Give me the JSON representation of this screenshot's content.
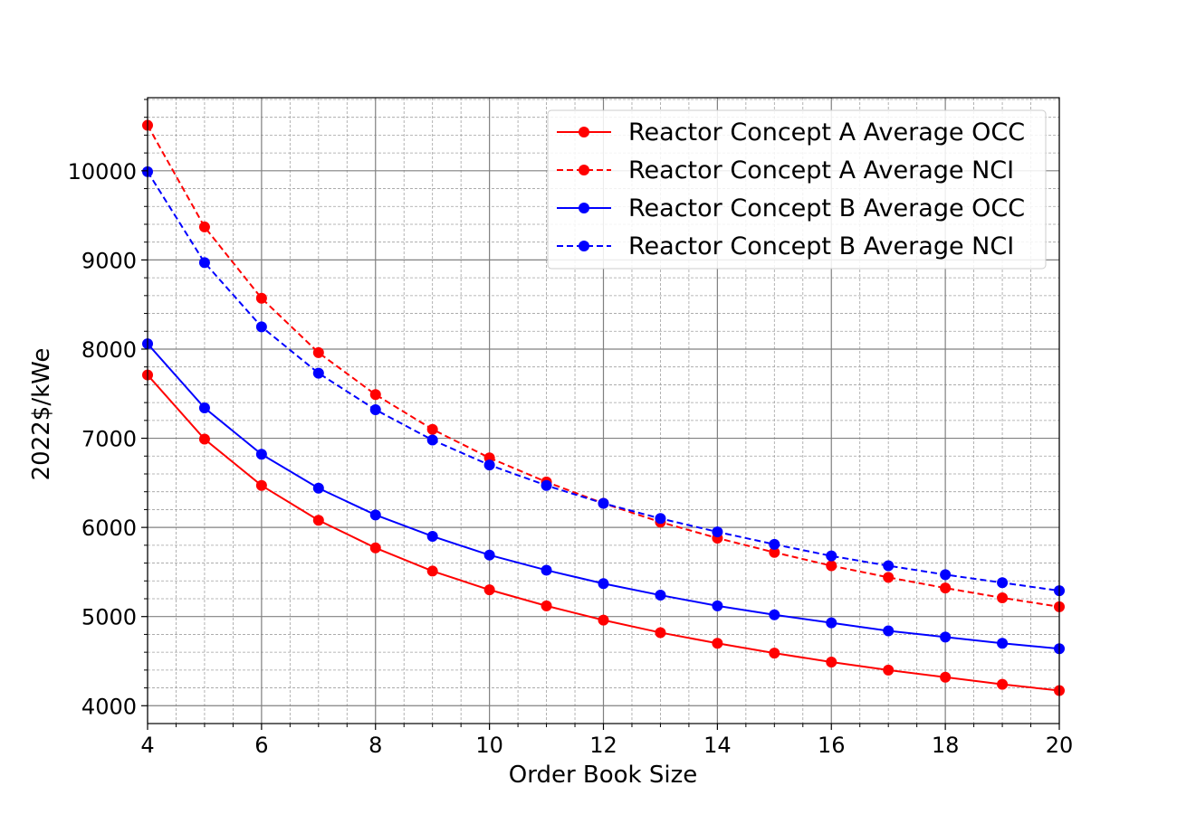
{
  "chart_data": {
    "type": "line",
    "xlabel": "Order Book Size",
    "ylabel": "2022$/kWe",
    "xlim": [
      4,
      20
    ],
    "ylim": [
      3800,
      10820
    ],
    "xticks": [
      4,
      6,
      8,
      10,
      12,
      14,
      16,
      18,
      20
    ],
    "yticks": [
      4000,
      5000,
      6000,
      7000,
      8000,
      9000,
      10000
    ],
    "grid": true,
    "minor_grid": true,
    "legend_position": "top-right",
    "x": [
      4,
      5,
      6,
      7,
      8,
      9,
      10,
      11,
      12,
      13,
      14,
      15,
      16,
      17,
      18,
      19,
      20
    ],
    "series": [
      {
        "name": "Reactor Concept A Average OCC",
        "color": "#ff0000",
        "style": "solid",
        "values": [
          7710,
          6990,
          6470,
          6080,
          5770,
          5510,
          5300,
          5120,
          4960,
          4820,
          4700,
          4590,
          4490,
          4400,
          4320,
          4240,
          4170
        ]
      },
      {
        "name": "Reactor Concept A Average NCI",
        "color": "#ff0000",
        "style": "dashed",
        "values": [
          10510,
          9370,
          8570,
          7960,
          7490,
          7100,
          6780,
          6510,
          6270,
          6060,
          5880,
          5720,
          5570,
          5440,
          5320,
          5210,
          5110
        ]
      },
      {
        "name": "Reactor Concept B Average OCC",
        "color": "#0000ff",
        "style": "solid",
        "values": [
          8060,
          7340,
          6820,
          6440,
          6140,
          5900,
          5690,
          5520,
          5370,
          5240,
          5120,
          5020,
          4930,
          4840,
          4770,
          4700,
          4640
        ]
      },
      {
        "name": "Reactor Concept B Average NCI",
        "color": "#0000ff",
        "style": "dashed",
        "values": [
          9990,
          8970,
          8250,
          7730,
          7320,
          6980,
          6700,
          6470,
          6270,
          6100,
          5950,
          5810,
          5680,
          5570,
          5470,
          5380,
          5290
        ]
      }
    ]
  }
}
